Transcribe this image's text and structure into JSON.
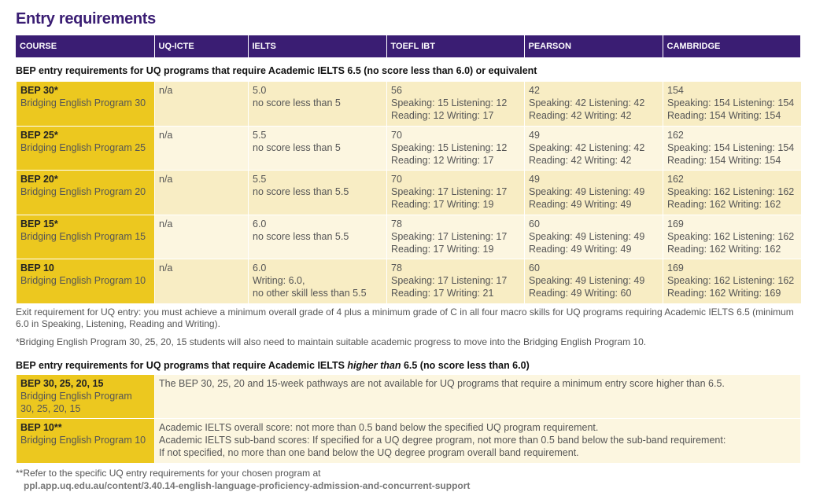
{
  "title": "Entry requirements",
  "columns": [
    "COURSE",
    "UQ-ICTE",
    "IELTS",
    "TOEFL IBT",
    "PEARSON",
    "CAMBRIDGE"
  ],
  "section1_title": "BEP entry requirements for UQ programs that require Academic IELTS 6.5 (no score less than 6.0) or equivalent",
  "rows": [
    {
      "code": "BEP 30*",
      "name": "Bridging English Program 30",
      "icte": "n/a",
      "ielts": [
        "5.0",
        "no score less than 5"
      ],
      "toefl": [
        "56",
        "Speaking: 15  Listening: 12",
        "Reading: 12  Writing: 17"
      ],
      "pearson": [
        "42",
        "Speaking: 42  Listening: 42",
        "Reading: 42  Writing: 42"
      ],
      "cambridge": [
        "154",
        "Speaking: 154  Listening: 154",
        "Reading: 154  Writing: 154"
      ]
    },
    {
      "code": "BEP 25*",
      "name": "Bridging English Program 25",
      "icte": "n/a",
      "ielts": [
        "5.5",
        "no score less than 5"
      ],
      "toefl": [
        "70",
        "Speaking: 15  Listening: 12",
        "Reading: 12  Writing: 17"
      ],
      "pearson": [
        "49",
        "Speaking: 42  Listening: 42",
        "Reading:  42 Writing: 42"
      ],
      "cambridge": [
        "162",
        "Speaking: 154  Listening: 154",
        "Reading: 154  Writing: 154"
      ]
    },
    {
      "code": "BEP 20*",
      "name": "Bridging English Program 20",
      "icte": "n/a",
      "ielts": [
        "5.5",
        "no score less than 5.5"
      ],
      "toefl": [
        "70",
        "Speaking: 17  Listening: 17",
        "Reading: 17  Writing: 19"
      ],
      "pearson": [
        "49",
        "Speaking: 49  Listening: 49",
        "Reading: 49  Writing: 49"
      ],
      "cambridge": [
        "162",
        "Speaking: 162  Listening: 162",
        "Reading: 162  Writing: 162"
      ]
    },
    {
      "code": "BEP 15*",
      "name": "Bridging English Program 15",
      "icte": "n/a",
      "ielts": [
        "6.0",
        "no score less than 5.5"
      ],
      "toefl": [
        "78",
        "Speaking: 17  Listening: 17",
        "Reading: 17  Writing: 19"
      ],
      "pearson": [
        "60",
        "Speaking: 49  Listening: 49",
        "Reading: 49  Writing: 49"
      ],
      "cambridge": [
        "169",
        "Speaking: 162  Listening: 162",
        "Reading: 162  Writing: 162"
      ]
    },
    {
      "code": "BEP 10",
      "name": "Bridging English Program 10",
      "icte": "n/a",
      "ielts": [
        "6.0",
        "Writing: 6.0,",
        "no other skill less than 5.5"
      ],
      "toefl": [
        "78",
        "Speaking: 17  Listening: 17",
        "Reading: 17  Writing: 21"
      ],
      "pearson": [
        "60",
        "Speaking: 49  Listening: 49",
        "Reading: 49  Writing: 60"
      ],
      "cambridge": [
        "169",
        "Speaking: 162  Listening: 162",
        "Reading: 162  Writing: 169"
      ]
    }
  ],
  "exit_note": "Exit requirement for UQ entry: you must achieve a minimum overall grade of 4 plus a minimum grade of C in all four macro skills for UQ programs requiring Academic IELTS 6.5 (minimum 6.0 in Speaking, Listening, Reading and Writing).",
  "progress_note": "*Bridging English Program 30, 25, 20, 15 students will also need to maintain suitable academic progress to move into the Bridging English Program 10.",
  "section2_title": {
    "pre": "BEP entry requirements for UQ programs that require Academic IELTS ",
    "em": "higher than",
    "post": " 6.5 (no score less than 6.0)"
  },
  "rows2": [
    {
      "code": "BEP 30, 25, 20, 15",
      "name": [
        "Bridging English Program",
        "30, 25, 20, 15"
      ],
      "text": [
        "The BEP 30, 25, 20 and 15-week pathways are not available for UQ programs that require a minimum entry score higher than 6.5."
      ]
    },
    {
      "code": "BEP 10**",
      "name": [
        "Bridging English Program 10"
      ],
      "text": [
        "Academic IELTS overall score: not more than 0.5 band below the specified UQ program requirement.",
        "Academic IELTS sub-band scores: If specified for a UQ degree program, not more than 0.5 band below the sub-band requirement:",
        "If not specified, no more than one band below the UQ degree program overall band requirement."
      ]
    }
  ],
  "footnote": "**Refer to the specific UQ entry requirements for your chosen program at",
  "footnote_url": "ppl.app.uq.edu.au/content/3.40.14-english-language-proficiency-admission-and-concurrent-support",
  "colors": {
    "header": "#3a1d73",
    "course": "#ecc81f",
    "row_dark": "#f8edc4",
    "row_light": "#fcf6e0"
  }
}
